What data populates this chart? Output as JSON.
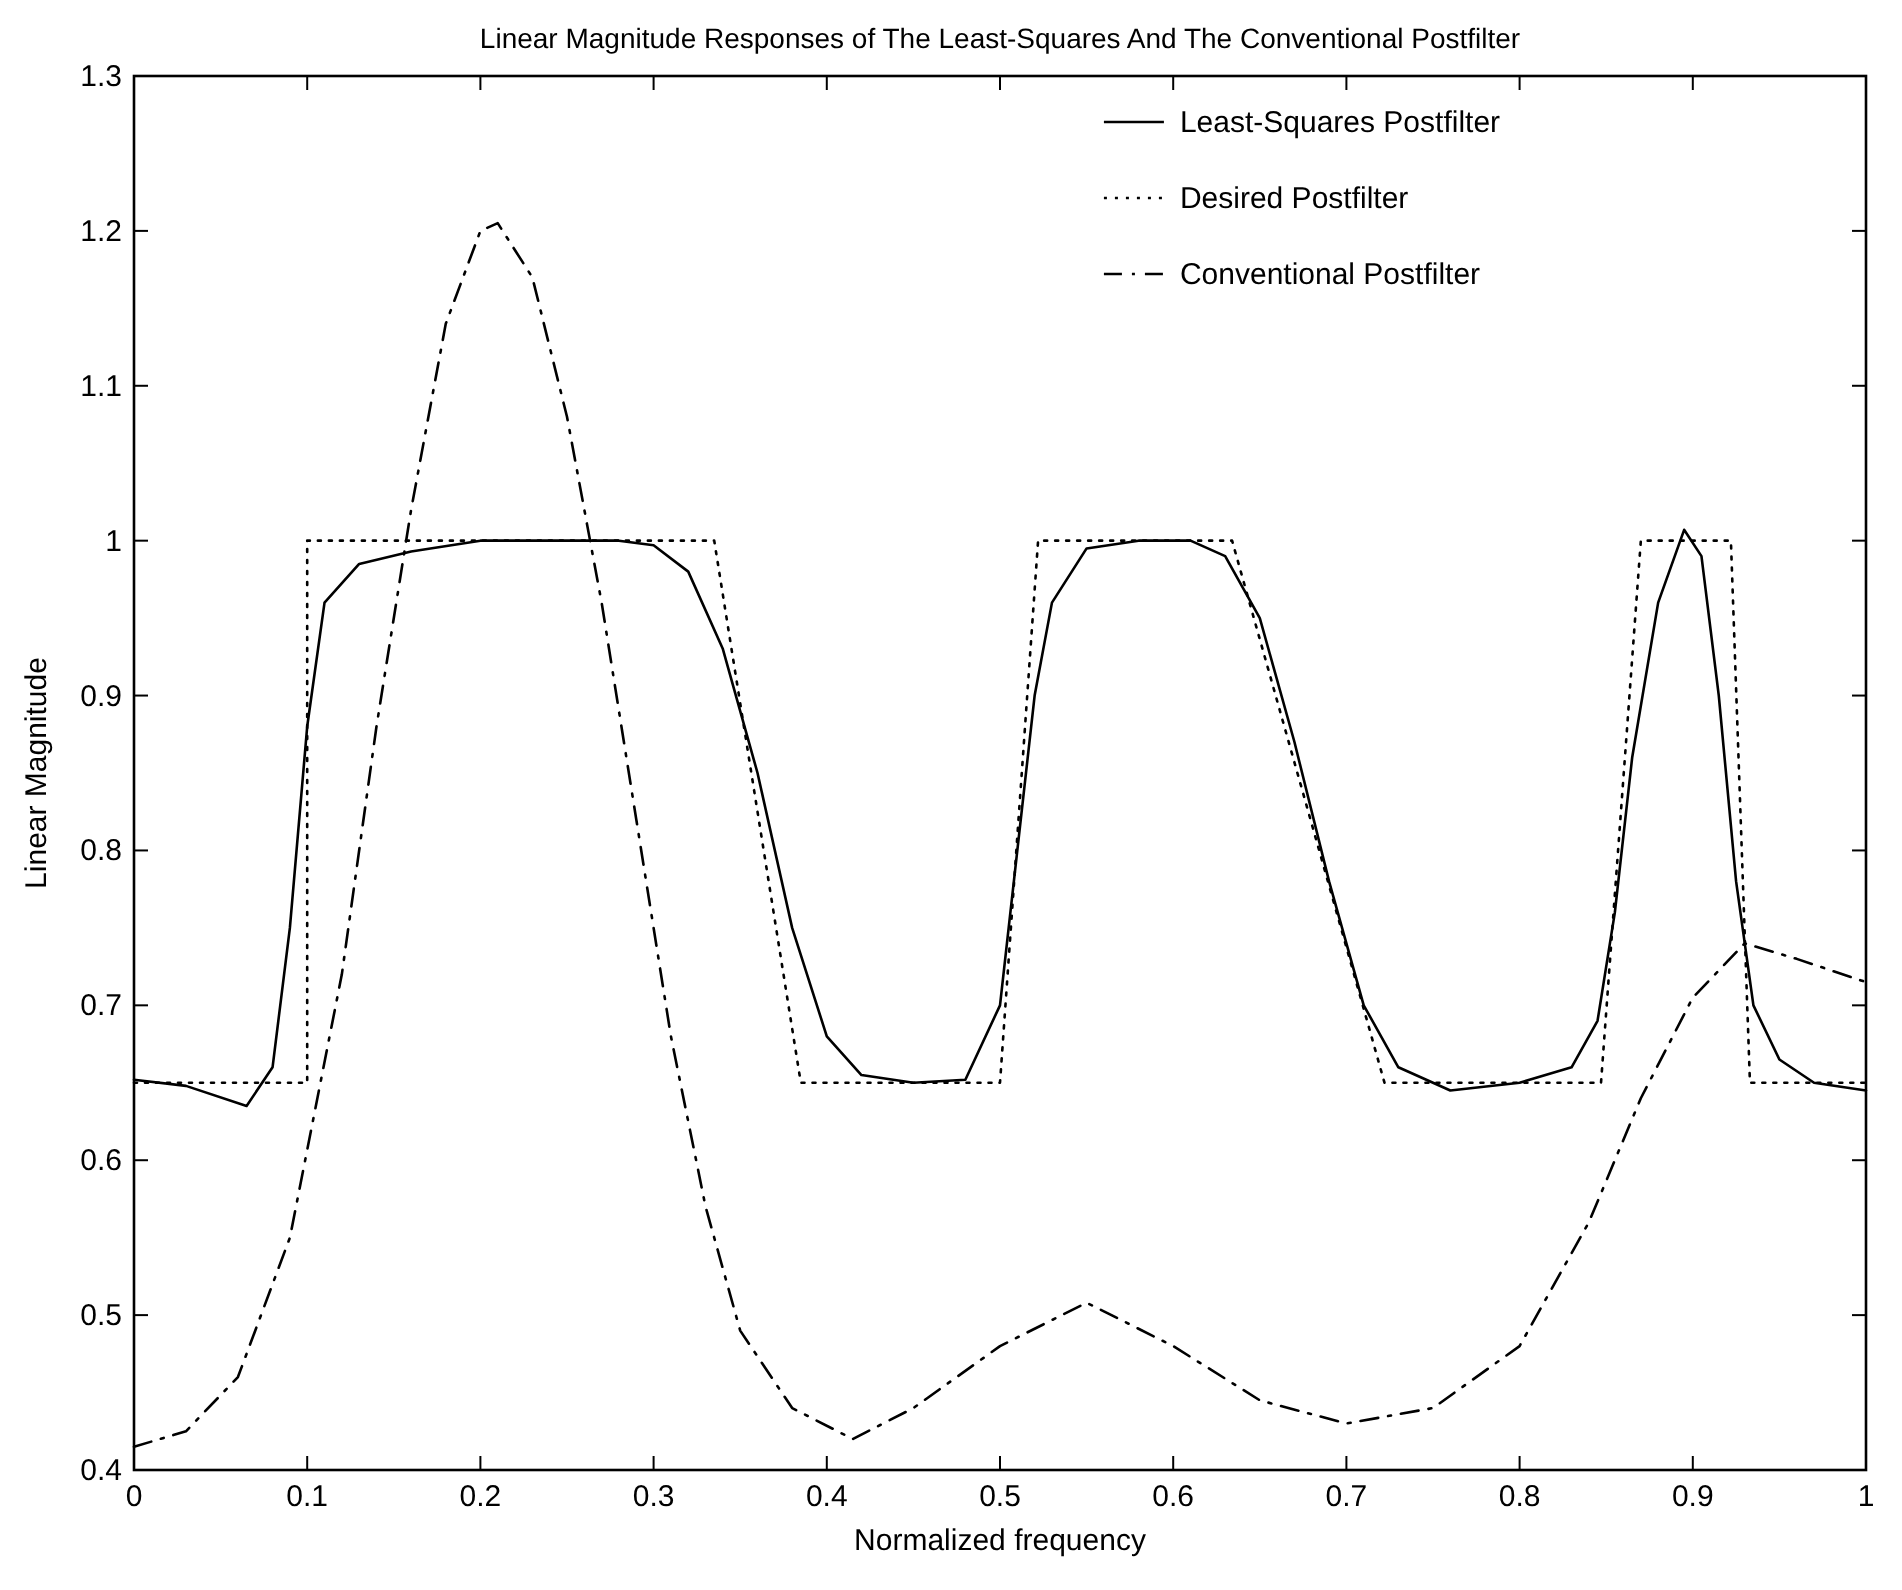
{
  "chart_data": {
    "type": "line",
    "title": "Linear Magnitude Responses of The Least-Squares And The Conventional Postfilter",
    "xlabel": "Normalized frequency",
    "ylabel": "Linear Magnitude",
    "xlim": [
      0,
      1
    ],
    "ylim": [
      0.4,
      1.3
    ],
    "xticks": [
      0,
      0.1,
      0.2,
      0.3,
      0.4,
      0.5,
      0.6,
      0.7,
      0.8,
      0.9,
      1
    ],
    "yticks": [
      0.4,
      0.5,
      0.6,
      0.7,
      0.8,
      0.9,
      1,
      1.1,
      1.2,
      1.3
    ],
    "grid": false,
    "legend": "top right",
    "series": [
      {
        "name": "Least-Squares Postfilter",
        "color": "#000000",
        "line_style": "solid",
        "x": [
          0,
          0.03,
          0.065,
          0.08,
          0.09,
          0.1,
          0.11,
          0.13,
          0.16,
          0.2,
          0.28,
          0.3,
          0.32,
          0.34,
          0.36,
          0.38,
          0.4,
          0.42,
          0.45,
          0.48,
          0.5,
          0.51,
          0.52,
          0.53,
          0.55,
          0.58,
          0.61,
          0.63,
          0.65,
          0.67,
          0.69,
          0.71,
          0.73,
          0.76,
          0.8,
          0.83,
          0.845,
          0.855,
          0.865,
          0.88,
          0.895,
          0.905,
          0.915,
          0.925,
          0.935,
          0.95,
          0.97,
          1
        ],
        "values": [
          0.652,
          0.648,
          0.635,
          0.66,
          0.75,
          0.88,
          0.96,
          0.985,
          0.993,
          1,
          1,
          0.997,
          0.98,
          0.93,
          0.85,
          0.75,
          0.68,
          0.655,
          0.65,
          0.652,
          0.7,
          0.8,
          0.9,
          0.96,
          0.995,
          1,
          1,
          0.99,
          0.95,
          0.87,
          0.78,
          0.7,
          0.66,
          0.645,
          0.65,
          0.66,
          0.69,
          0.76,
          0.86,
          0.96,
          1.007,
          0.99,
          0.9,
          0.78,
          0.7,
          0.665,
          0.65,
          0.645
        ]
      },
      {
        "name": "Desired Postfilter",
        "color": "#000000",
        "line_style": "dotted",
        "x": [
          0,
          0.1,
          0.1,
          0.335,
          0.385,
          0.5,
          0.522,
          0.634,
          0.722,
          0.847,
          0.87,
          0.922,
          0.933,
          1
        ],
        "values": [
          0.65,
          0.65,
          1,
          1,
          0.65,
          0.65,
          1,
          1,
          0.65,
          0.65,
          1,
          1,
          0.65,
          0.65
        ]
      },
      {
        "name": "Conventional Postfilter",
        "color": "#000000",
        "line_style": "dashed",
        "x": [
          0,
          0.03,
          0.06,
          0.09,
          0.12,
          0.14,
          0.16,
          0.18,
          0.2,
          0.21,
          0.23,
          0.25,
          0.27,
          0.29,
          0.31,
          0.33,
          0.35,
          0.38,
          0.415,
          0.45,
          0.5,
          0.55,
          0.6,
          0.65,
          0.7,
          0.75,
          0.8,
          0.84,
          0.87,
          0.9,
          0.93,
          0.96,
          1
        ],
        "values": [
          0.415,
          0.425,
          0.46,
          0.55,
          0.72,
          0.88,
          1.02,
          1.14,
          1.2,
          1.205,
          1.17,
          1.08,
          0.96,
          0.82,
          0.68,
          0.57,
          0.49,
          0.44,
          0.42,
          0.44,
          0.48,
          0.508,
          0.48,
          0.445,
          0.43,
          0.44,
          0.48,
          0.56,
          0.64,
          0.705,
          0.74,
          0.73,
          0.715
        ]
      }
    ]
  }
}
